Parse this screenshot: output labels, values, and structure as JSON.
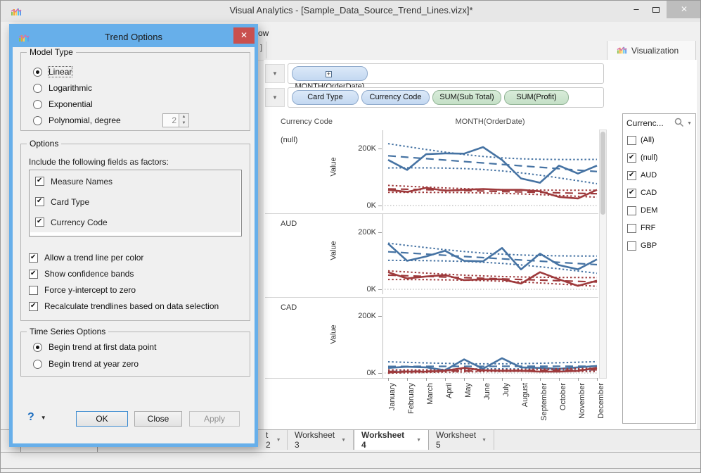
{
  "window": {
    "title": "Visual Analytics - [Sample_Data_Source_Trend_Lines.vizx]*"
  },
  "menu_fragment": "ow",
  "toolbar_fragment": "]",
  "visualization_tab": {
    "label": "Visualization"
  },
  "shelves": {
    "columns_pills": [
      {
        "label": "MONTH(OrderDate)",
        "color": "blue",
        "expandable": true
      }
    ],
    "rows_pills": [
      {
        "label": "Card Type",
        "color": "blue"
      },
      {
        "label": "Currency Code",
        "color": "blue"
      },
      {
        "label": "SUM(Sub Total)",
        "color": "green"
      },
      {
        "label": "SUM(Profit)",
        "color": "green"
      }
    ]
  },
  "chart_data": {
    "type": "line",
    "facet_row_header": "Currency Code",
    "x_axis_header": "MONTH(OrderDate)",
    "ylabel": "Value",
    "yticks": [
      "200K",
      "0K"
    ],
    "ylim": [
      0,
      280
    ],
    "grid": "0K dotted baseline only",
    "x_categories": [
      "January",
      "February",
      "March",
      "April",
      "May",
      "June",
      "July",
      "August",
      "September",
      "October",
      "November",
      "December"
    ],
    "trend": {
      "model": "Linear",
      "confidence_bands": true,
      "trend_line_per_color": true
    },
    "panels": [
      {
        "label": "(null)",
        "series": [
          {
            "name": "SUM(Sub Total)",
            "color": "#4673A3",
            "values": [
              160,
              125,
              180,
              183,
              182,
              205,
              160,
              95,
              80,
              140,
              112,
              140
            ]
          },
          {
            "name": "SUM(Profit)",
            "color": "#9E3A3C",
            "values": [
              55,
              48,
              62,
              52,
              55,
              58,
              55,
              55,
              50,
              30,
              25,
              55
            ]
          }
        ]
      },
      {
        "label": "AUD",
        "series": [
          {
            "name": "SUM(Sub Total)",
            "color": "#4673A3",
            "values": [
              160,
              100,
              115,
              135,
              100,
              98,
              145,
              70,
              125,
              85,
              70,
              105
            ]
          },
          {
            "name": "SUM(Profit)",
            "color": "#9E3A3C",
            "values": [
              60,
              38,
              45,
              50,
              32,
              35,
              35,
              20,
              60,
              35,
              12,
              30
            ]
          }
        ]
      },
      {
        "label": "CAD",
        "series": [
          {
            "name": "SUM(Sub Total)",
            "color": "#4673A3",
            "values": [
              18,
              22,
              20,
              10,
              48,
              15,
              52,
              20,
              18,
              15,
              20,
              25
            ]
          },
          {
            "name": "SUM(Profit)",
            "color": "#9E3A3C",
            "values": [
              2,
              5,
              5,
              8,
              18,
              10,
              8,
              8,
              5,
              5,
              8,
              18
            ]
          }
        ]
      }
    ]
  },
  "legend": {
    "title": "Currenc...",
    "items": [
      {
        "label": "(All)",
        "checked": false
      },
      {
        "label": "(null)",
        "checked": true
      },
      {
        "label": "AUD",
        "checked": true
      },
      {
        "label": "CAD",
        "checked": true
      },
      {
        "label": "DEM",
        "checked": false
      },
      {
        "label": "FRF",
        "checked": false
      },
      {
        "label": "GBP",
        "checked": false
      }
    ]
  },
  "worksheet_tabs": [
    {
      "label": "t 2",
      "active": false
    },
    {
      "label": "Worksheet 3",
      "active": false
    },
    {
      "label": "Worksheet 4",
      "active": true
    },
    {
      "label": "Worksheet 5",
      "active": false
    }
  ],
  "dialog": {
    "title": "Trend Options",
    "model_type": {
      "legend": "Model Type",
      "options": [
        {
          "label": "Linear",
          "selected": true
        },
        {
          "label": "Logarithmic",
          "selected": false
        },
        {
          "label": "Exponential",
          "selected": false
        },
        {
          "label": "Polynomial, degree",
          "selected": false,
          "spinner_value": "2"
        }
      ]
    },
    "options": {
      "legend": "Options",
      "factors_label": "Include the following fields as factors:",
      "factors": [
        {
          "label": "Measure Names",
          "checked": true
        },
        {
          "label": "Card Type",
          "checked": true
        },
        {
          "label": "Currency Code",
          "checked": true
        }
      ],
      "checkboxes": [
        {
          "label": "Allow a trend line per color",
          "checked": true
        },
        {
          "label": "Show confidence bands",
          "checked": true
        },
        {
          "label": "Force y-intercept to zero",
          "checked": false
        },
        {
          "label": "Recalculate trendlines based on data selection",
          "checked": true
        }
      ]
    },
    "time_series": {
      "legend": "Time Series Options",
      "options": [
        {
          "label": "Begin trend at first data point",
          "selected": true
        },
        {
          "label": "Begin trend at year zero",
          "selected": false
        }
      ]
    },
    "help_label": "?",
    "buttons": [
      {
        "label": "OK",
        "default": true,
        "enabled": true
      },
      {
        "label": "Close",
        "default": false,
        "enabled": true
      },
      {
        "label": "Apply",
        "default": false,
        "enabled": false
      }
    ]
  }
}
